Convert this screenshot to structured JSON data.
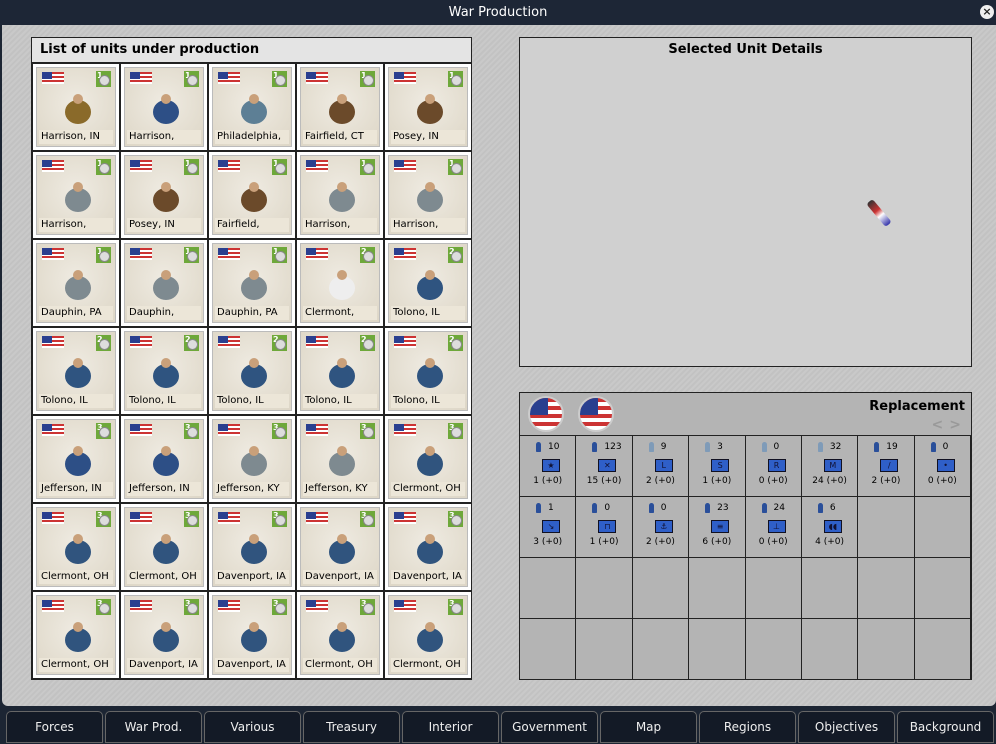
{
  "window": {
    "title": "War Production"
  },
  "units_panel": {
    "title": "List of units under production",
    "units": [
      {
        "location": "Harrison, IN",
        "turns": "1",
        "type": "supply-wagon"
      },
      {
        "location": "Harrison,",
        "turns": "1",
        "type": "officer"
      },
      {
        "location": "Philadelphia,",
        "turns": "1",
        "type": "ship"
      },
      {
        "location": "Fairfield, CT",
        "turns": "1",
        "type": "horse-artillery"
      },
      {
        "location": "Posey, IN",
        "turns": "1",
        "type": "horse-artillery"
      },
      {
        "location": "Harrison,",
        "turns": "1",
        "type": "cannon"
      },
      {
        "location": "Posey, IN",
        "turns": "1",
        "type": "horse-artillery"
      },
      {
        "location": "Fairfield,",
        "turns": "1",
        "type": "horse-artillery"
      },
      {
        "location": "Harrison,",
        "turns": "1",
        "type": "cannon"
      },
      {
        "location": "Harrison,",
        "turns": "1",
        "type": "cannon"
      },
      {
        "location": "Dauphin, PA",
        "turns": "1",
        "type": "cannon"
      },
      {
        "location": "Dauphin,",
        "turns": "1",
        "type": "cannon"
      },
      {
        "location": "Dauphin, PA",
        "turns": "1",
        "type": "cannon"
      },
      {
        "location": "Clermont,",
        "turns": "2",
        "type": "general"
      },
      {
        "location": "Tolono, IL",
        "turns": "2",
        "type": "cavalry"
      },
      {
        "location": "Tolono, IL",
        "turns": "2",
        "type": "cavalry"
      },
      {
        "location": "Tolono, IL",
        "turns": "2",
        "type": "cavalry"
      },
      {
        "location": "Tolono, IL",
        "turns": "2",
        "type": "cavalry"
      },
      {
        "location": "Tolono, IL",
        "turns": "2",
        "type": "cavalry"
      },
      {
        "location": "Tolono, IL",
        "turns": "2",
        "type": "cavalry"
      },
      {
        "location": "Jefferson, IN",
        "turns": "3",
        "type": "officer"
      },
      {
        "location": "Jefferson, IN",
        "turns": "3",
        "type": "officer"
      },
      {
        "location": "Jefferson, KY",
        "turns": "3",
        "type": "cannon"
      },
      {
        "location": "Jefferson, KY",
        "turns": "3",
        "type": "cannon"
      },
      {
        "location": "Clermont, OH",
        "turns": "3",
        "type": "infantry"
      },
      {
        "location": "Clermont, OH",
        "turns": "3",
        "type": "infantry"
      },
      {
        "location": "Clermont, OH",
        "turns": "3",
        "type": "infantry"
      },
      {
        "location": "Davenport, IA",
        "turns": "3",
        "type": "infantry"
      },
      {
        "location": "Davenport, IA",
        "turns": "3",
        "type": "infantry"
      },
      {
        "location": "Davenport, IA",
        "turns": "3",
        "type": "infantry"
      },
      {
        "location": "Clermont, OH",
        "turns": "3",
        "type": "infantry"
      },
      {
        "location": "Davenport, IA",
        "turns": "3",
        "type": "infantry"
      },
      {
        "location": "Davenport, IA",
        "turns": "3",
        "type": "infantry"
      },
      {
        "location": "Clermont, OH",
        "turns": "3",
        "type": "infantry"
      },
      {
        "location": "Clermont, OH",
        "turns": "3",
        "type": "infantry"
      }
    ]
  },
  "details_panel": {
    "title": "Selected Unit Details"
  },
  "replacement": {
    "title": "Replacement",
    "prev_icon": "chevron-left-icon",
    "next_icon": "chevron-right-icon",
    "cells": [
      {
        "count": "10",
        "symbol": "★",
        "value": "1 (+0)",
        "light": false
      },
      {
        "count": "123",
        "symbol": "✕",
        "value": "15 (+0)",
        "light": false
      },
      {
        "count": "9",
        "symbol": "L",
        "value": "2 (+0)",
        "light": true
      },
      {
        "count": "3",
        "symbol": "S",
        "value": "1 (+0)",
        "light": true
      },
      {
        "count": "0",
        "symbol": "R",
        "value": "0 (+0)",
        "light": true
      },
      {
        "count": "32",
        "symbol": "M",
        "value": "24 (+0)",
        "light": true
      },
      {
        "count": "19",
        "symbol": "/",
        "value": "2 (+0)",
        "light": false
      },
      {
        "count": "0",
        "symbol": "•",
        "value": "0 (+0)",
        "light": false
      },
      {
        "count": "1",
        "symbol": "↘",
        "value": "3 (+0)",
        "light": false
      },
      {
        "count": "0",
        "symbol": "⊓",
        "value": "1 (+0)",
        "light": false
      },
      {
        "count": "0",
        "symbol": "⚓",
        "value": "2 (+0)",
        "light": false
      },
      {
        "count": "23",
        "symbol": "≡",
        "value": "6 (+0)",
        "light": false
      },
      {
        "count": "24",
        "symbol": "⊥",
        "value": "0 (+0)",
        "light": false
      },
      {
        "count": "6",
        "symbol": "◖◖",
        "value": "4 (+0)",
        "light": false
      }
    ]
  },
  "tabs": [
    "Forces",
    "War Prod.",
    "Various",
    "Treasury",
    "Interior",
    "Government",
    "Map",
    "Regions",
    "Objectives",
    "Background"
  ]
}
